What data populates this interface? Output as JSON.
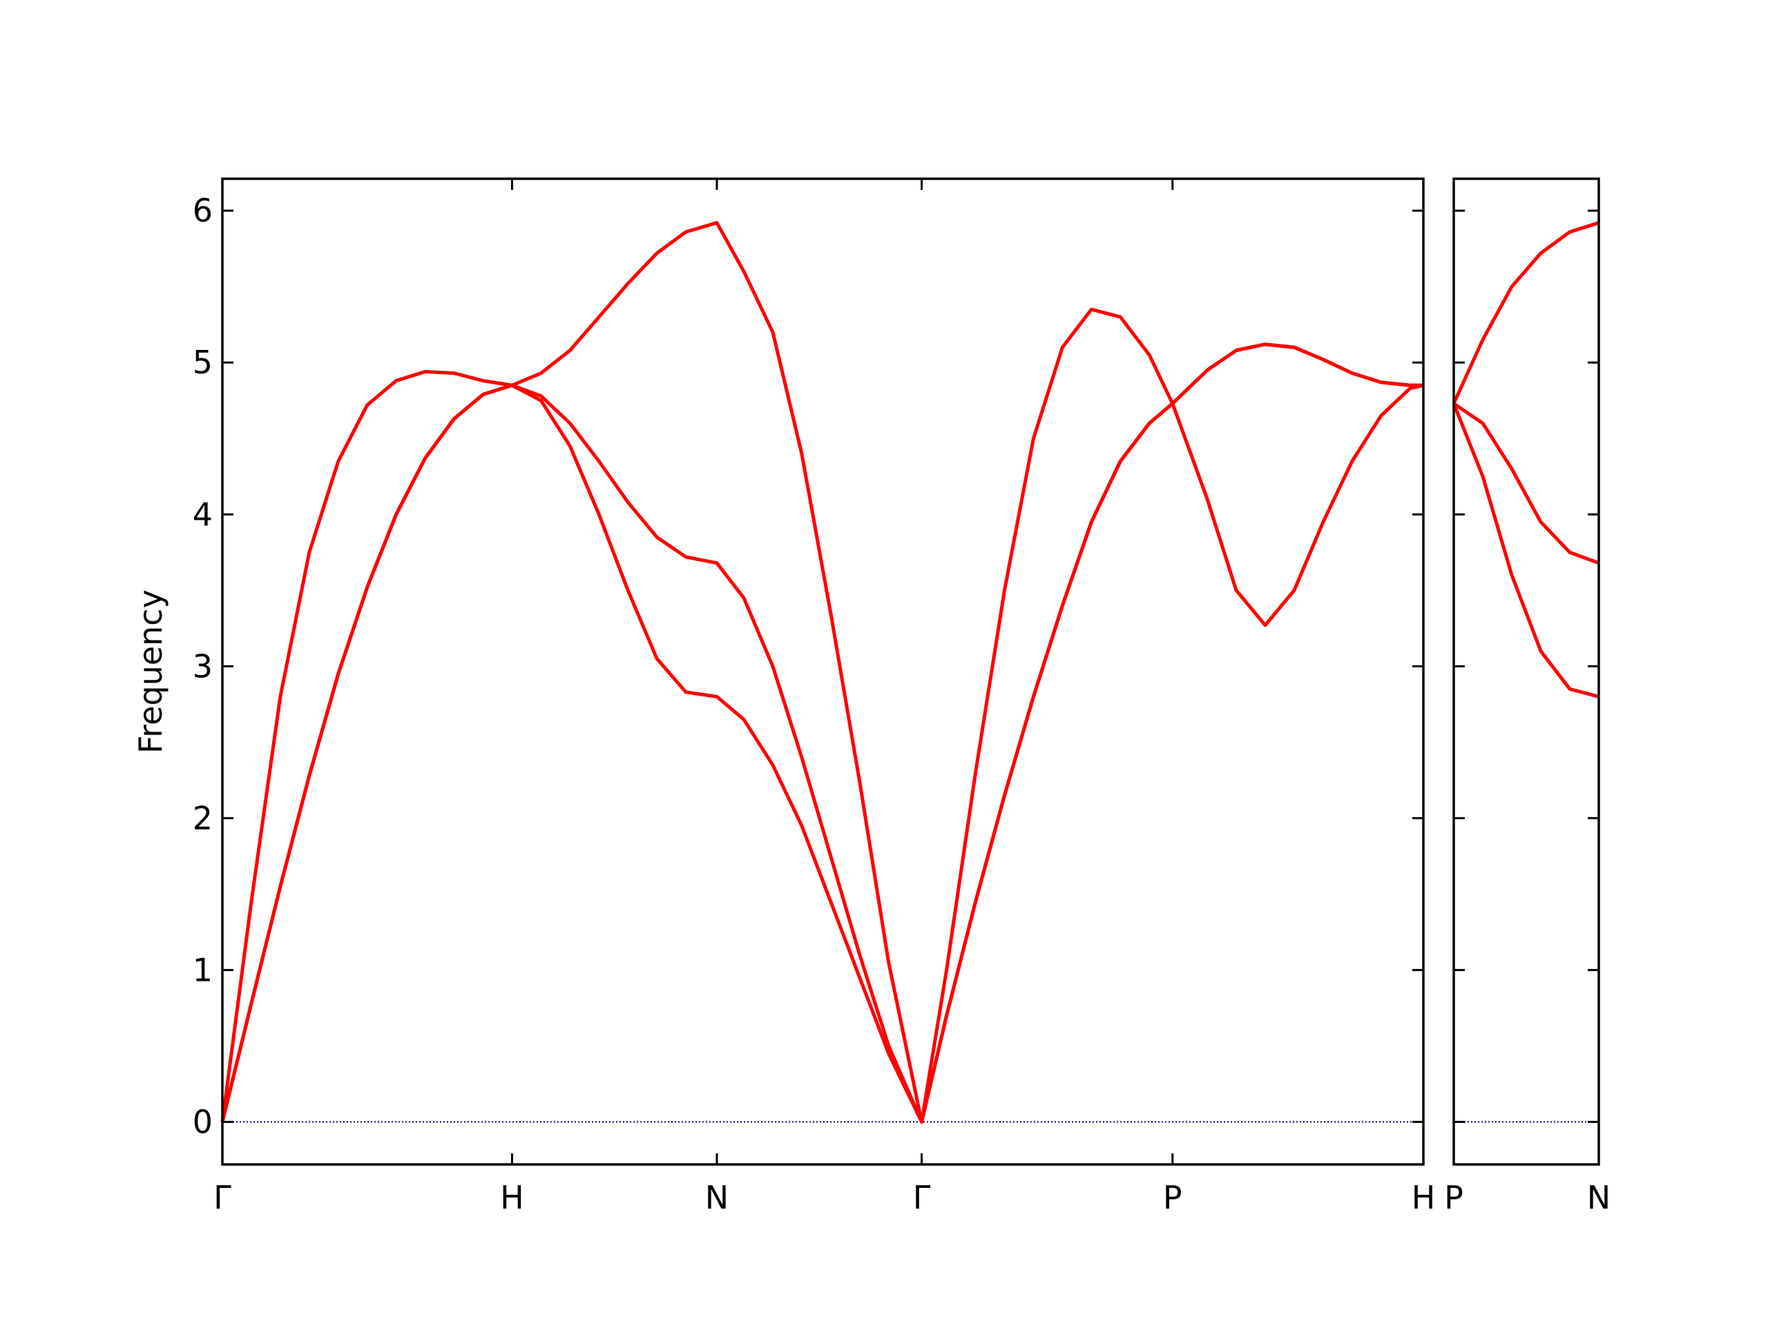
{
  "chart_data": [
    {
      "type": "line",
      "ylabel": "Frequency",
      "show_ytick_labels": true,
      "x": [
        0,
        0.1,
        0.2,
        0.3,
        0.4,
        0.5,
        0.6,
        0.7,
        0.8,
        0.9,
        1.0,
        1.1,
        1.2,
        1.3,
        1.4,
        1.5,
        1.6,
        1.707,
        1.8,
        1.9,
        2.0,
        2.1,
        2.2,
        2.3,
        2.414,
        2.5,
        2.6,
        2.7,
        2.8,
        2.9,
        3.0,
        3.1,
        3.2,
        3.28,
        3.4,
        3.5,
        3.6,
        3.7,
        3.8,
        3.9,
        4.0,
        4.1,
        4.146
      ],
      "xlim": [
        0,
        4.146
      ],
      "xticks": [
        {
          "value": 0,
          "label": "Γ"
        },
        {
          "value": 1,
          "label": "H"
        },
        {
          "value": 1.707,
          "label": "N"
        },
        {
          "value": 2.414,
          "label": "Γ"
        },
        {
          "value": 3.28,
          "label": "P"
        },
        {
          "value": 4.146,
          "label": "H"
        }
      ],
      "ylim": [
        -0.28,
        6.21
      ],
      "yticks": [
        0,
        1,
        2,
        3,
        4,
        5,
        6
      ],
      "hline": {
        "y": 0,
        "color": "#00008b"
      },
      "series": [
        {
          "color": "#ff0000",
          "values": [
            0,
            0.78,
            1.55,
            2.28,
            2.95,
            3.52,
            4.0,
            4.37,
            4.63,
            4.79,
            4.85,
            4.75,
            4.45,
            4.0,
            3.5,
            3.05,
            2.83,
            2.8,
            2.65,
            2.35,
            1.95,
            1.45,
            0.95,
            0.45,
            0,
            0.7,
            1.45,
            2.15,
            2.8,
            3.4,
            3.95,
            4.35,
            4.6,
            4.73,
            4.95,
            5.08,
            5.12,
            5.1,
            5.02,
            4.93,
            4.87,
            4.85,
            4.85
          ]
        },
        {
          "color": "#ff0000",
          "values": [
            0,
            0.78,
            1.55,
            2.28,
            2.95,
            3.52,
            4.0,
            4.37,
            4.63,
            4.79,
            4.85,
            4.78,
            4.6,
            4.35,
            4.08,
            3.85,
            3.72,
            3.68,
            3.45,
            3.0,
            2.4,
            1.75,
            1.1,
            0.5,
            0,
            0.7,
            1.45,
            2.15,
            2.8,
            3.4,
            3.95,
            4.35,
            4.6,
            4.73,
            4.95,
            5.08,
            5.12,
            5.1,
            5.02,
            4.93,
            4.87,
            4.85,
            4.85
          ]
        },
        {
          "color": "#ff0000",
          "values": [
            0,
            1.45,
            2.8,
            3.75,
            4.35,
            4.72,
            4.88,
            4.94,
            4.93,
            4.88,
            4.85,
            4.93,
            5.08,
            5.3,
            5.52,
            5.72,
            5.86,
            5.92,
            5.6,
            5.2,
            4.4,
            3.35,
            2.24,
            1.05,
            0,
            1.0,
            2.3,
            3.5,
            4.5,
            5.1,
            5.35,
            5.3,
            5.05,
            4.73,
            4.1,
            3.5,
            3.27,
            3.5,
            3.95,
            4.35,
            4.65,
            4.83,
            4.85
          ]
        }
      ]
    },
    {
      "type": "line",
      "show_ytick_labels": false,
      "x": [
        0,
        0.1,
        0.2,
        0.3,
        0.4,
        0.5
      ],
      "xlim": [
        0,
        0.5
      ],
      "xticks": [
        {
          "value": 0,
          "label": "P"
        },
        {
          "value": 0.5,
          "label": "N"
        }
      ],
      "ylim": [
        -0.28,
        6.21
      ],
      "yticks": [
        0,
        1,
        2,
        3,
        4,
        5,
        6
      ],
      "hline": {
        "y": 0,
        "color": "#00008b"
      },
      "series": [
        {
          "color": "#ff0000",
          "values": [
            4.73,
            5.15,
            5.5,
            5.72,
            5.86,
            5.92
          ]
        },
        {
          "color": "#ff0000",
          "values": [
            4.73,
            4.6,
            4.3,
            3.95,
            3.75,
            3.68
          ]
        },
        {
          "color": "#ff0000",
          "values": [
            4.73,
            4.25,
            3.6,
            3.1,
            2.85,
            2.8
          ]
        }
      ]
    }
  ]
}
